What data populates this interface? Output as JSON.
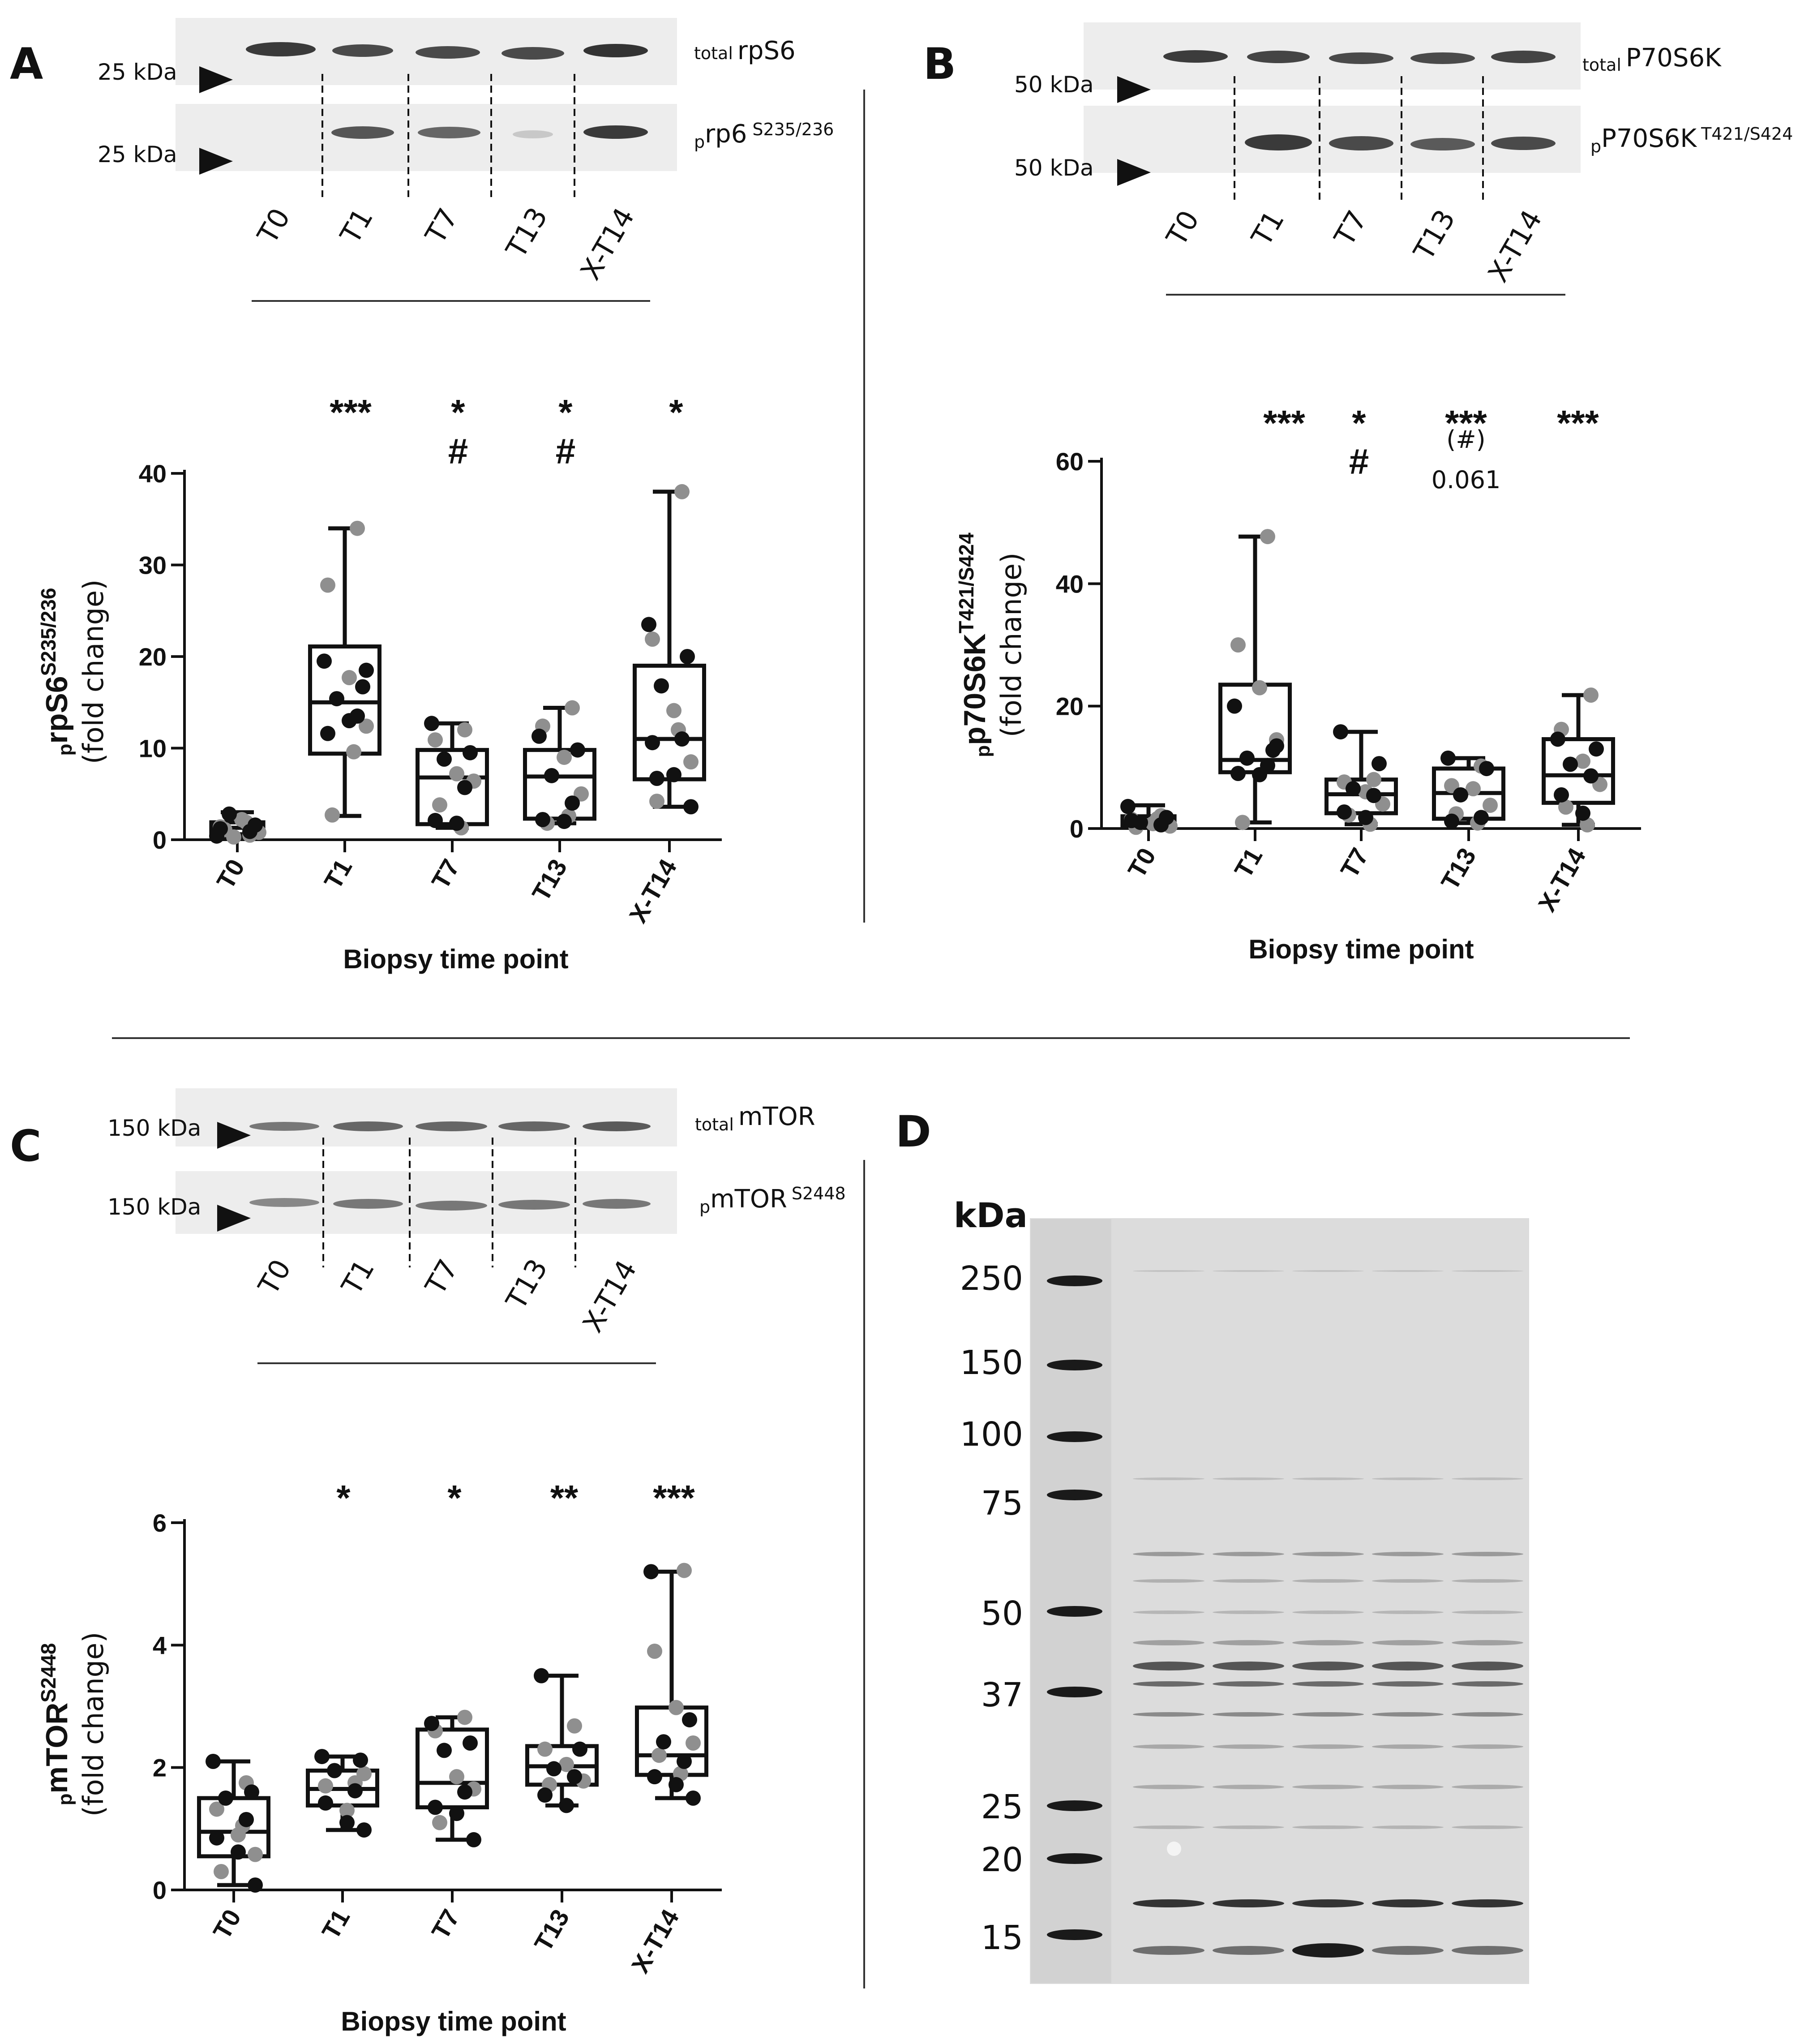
{
  "colors": {
    "ink": "#111111",
    "grey_dot": "#8f8f8f",
    "black_dot": "#111111",
    "blot_bg": "#ececec",
    "gel_bg": "#d9d9d9"
  },
  "panels": {
    "A": {
      "letter": "A",
      "blot": {
        "rows": [
          {
            "kda": "25 kDa",
            "prefix": "total",
            "name": "rpS6",
            "sup": ""
          },
          {
            "kda": "25 kDa",
            "prefix": "p",
            "name": "rp6",
            "sup": "S235/236"
          }
        ],
        "lanes": [
          "T0",
          "T1",
          "T7",
          "T13",
          "X-T14"
        ]
      },
      "significance": [
        {
          "top": "***",
          "bottom": ""
        },
        {
          "top": "*",
          "bottom": "#"
        },
        {
          "top": "*",
          "bottom": "#"
        },
        {
          "top": "*",
          "bottom": ""
        }
      ],
      "y_label": {
        "prefix": "p",
        "main": "rpS6",
        "sup": "S235/236",
        "second": "(fold change)"
      },
      "x_label": "Biopsy time point"
    },
    "B": {
      "letter": "B",
      "blot": {
        "rows": [
          {
            "kda": "50 kDa",
            "prefix": "total",
            "name": "P70S6K",
            "sup": ""
          },
          {
            "kda": "50 kDa",
            "prefix": "p",
            "name": "P70S6K",
            "sup": "T421/S424"
          }
        ],
        "lanes": [
          "T0",
          "T1",
          "T7",
          "T13",
          "X-T14"
        ]
      },
      "significance": [
        {
          "top": "***",
          "bottom": "",
          "extra": ""
        },
        {
          "top": "*",
          "bottom": "#",
          "extra": ""
        },
        {
          "top": "***",
          "bottom": "(#)",
          "extra": "0.061"
        },
        {
          "top": "***",
          "bottom": "",
          "extra": ""
        }
      ],
      "y_label": {
        "prefix": "p",
        "main": "p70S6K",
        "sup": "T421/S424",
        "second": "(fold change)"
      },
      "x_label": "Biopsy time point"
    },
    "C": {
      "letter": "C",
      "blot": {
        "rows": [
          {
            "kda": "150 kDa",
            "prefix": "total",
            "name": "mTOR",
            "sup": ""
          },
          {
            "kda": "150 kDa",
            "prefix": "p",
            "name": "mTOR",
            "sup": "S2448"
          }
        ],
        "lanes": [
          "T0",
          "T1",
          "T7",
          "T13",
          "X-T14"
        ]
      },
      "significance": [
        {
          "top": "*",
          "bottom": ""
        },
        {
          "top": "*",
          "bottom": ""
        },
        {
          "top": "**",
          "bottom": ""
        },
        {
          "top": "***",
          "bottom": ""
        }
      ],
      "y_label": {
        "prefix": "p",
        "main": "mTOR",
        "sup": "S2448",
        "second": "(fold change)"
      },
      "x_label": "Biopsy time point"
    },
    "D": {
      "letter": "D",
      "unit": "kDa",
      "markers": [
        "250",
        "150",
        "100",
        "75",
        "50",
        "37",
        "25",
        "20",
        "15"
      ]
    }
  },
  "chart_data": [
    {
      "type": "box",
      "panel": "A",
      "categories": [
        "T0",
        "T1",
        "T7",
        "T13",
        "X-T14"
      ],
      "ylim": [
        0,
        40
      ],
      "yticks": [
        0,
        10,
        20,
        30,
        40
      ],
      "boxes": [
        {
          "min": 0.3,
          "q1": 0.6,
          "median": 1.3,
          "q3": 1.9,
          "max": 3.0
        },
        {
          "min": 2.6,
          "q1": 9.4,
          "median": 15.0,
          "q3": 21.1,
          "max": 34.0
        },
        {
          "min": 1.3,
          "q1": 1.7,
          "median": 6.8,
          "q3": 9.8,
          "max": 12.7
        },
        {
          "min": 1.8,
          "q1": 2.3,
          "median": 6.9,
          "q3": 9.8,
          "max": 14.4
        },
        {
          "min": 3.6,
          "q1": 6.6,
          "median": 11.0,
          "q3": 19.0,
          "max": 38.0
        }
      ],
      "points": [
        {
          "black": [
            0.4,
            1.6,
            2.8,
            0.9,
            1.2
          ],
          "grey": [
            0.5,
            1.4,
            2.2,
            0.8,
            1.1,
            1.9,
            0.3
          ]
        },
        {
          "black": [
            19.5,
            16.7,
            15.4,
            13.5,
            11.6,
            13.0,
            18.5
          ],
          "grey": [
            34.0,
            27.8,
            17.7,
            12.4,
            2.7,
            9.6
          ]
        },
        {
          "black": [
            12.7,
            9.5,
            8.8,
            5.7,
            2.1,
            1.8
          ],
          "grey": [
            12.0,
            10.9,
            7.2,
            6.4,
            3.8,
            1.3
          ]
        },
        {
          "black": [
            11.3,
            9.8,
            7.0,
            4.0,
            2.2,
            2.0
          ],
          "grey": [
            14.4,
            12.4,
            9.0,
            5.0,
            1.8,
            2.6
          ]
        },
        {
          "black": [
            23.5,
            20.0,
            16.8,
            11.0,
            10.6,
            7.1,
            3.6,
            6.7
          ],
          "grey": [
            38.0,
            21.9,
            14.1,
            8.5,
            4.2,
            12.0
          ]
        }
      ]
    },
    {
      "type": "box",
      "panel": "B",
      "categories": [
        "T0",
        "T1",
        "T7",
        "T13",
        "X-T14"
      ],
      "ylim": [
        0,
        60
      ],
      "yticks": [
        0,
        20,
        40,
        60
      ],
      "boxes": [
        {
          "min": 0.1,
          "q1": 0.5,
          "median": 1.0,
          "q3": 2.0,
          "max": 3.8
        },
        {
          "min": 1.0,
          "q1": 9.2,
          "median": 11.2,
          "q3": 23.5,
          "max": 47.7
        },
        {
          "min": 0.7,
          "q1": 2.5,
          "median": 5.6,
          "q3": 8.0,
          "max": 15.8
        },
        {
          "min": 0.9,
          "q1": 1.6,
          "median": 5.8,
          "q3": 9.8,
          "max": 11.5
        },
        {
          "min": 0.6,
          "q1": 4.2,
          "median": 8.7,
          "q3": 14.6,
          "max": 21.8
        }
      ],
      "points": [
        {
          "black": [
            3.6,
            1.8,
            1.0,
            0.6,
            1.3
          ],
          "grey": [
            2.1,
            1.5,
            0.8,
            0.4,
            0.2,
            1.6
          ]
        },
        {
          "black": [
            20.0,
            12.8,
            11.5,
            10.3,
            9.0,
            8.8,
            13.5
          ],
          "grey": [
            47.7,
            30.0,
            23.0,
            14.5,
            1.0
          ]
        },
        {
          "black": [
            15.8,
            10.6,
            6.5,
            5.4,
            2.7,
            1.8
          ],
          "grey": [
            8.0,
            7.6,
            6.0,
            4.0,
            2.2,
            0.7
          ]
        },
        {
          "black": [
            11.5,
            9.8,
            5.5,
            1.8,
            1.2
          ],
          "grey": [
            10.2,
            7.0,
            6.5,
            3.8,
            2.4,
            0.9
          ]
        },
        {
          "black": [
            14.6,
            13.0,
            10.5,
            8.6,
            5.5,
            2.5
          ],
          "grey": [
            21.8,
            16.2,
            11.0,
            7.2,
            3.5,
            0.6
          ]
        }
      ]
    },
    {
      "type": "box",
      "panel": "C",
      "categories": [
        "T0",
        "T1",
        "T7",
        "T13",
        "X-T14"
      ],
      "ylim": [
        0,
        6
      ],
      "yticks": [
        0,
        2,
        4,
        6
      ],
      "boxes": [
        {
          "min": 0.08,
          "q1": 0.55,
          "median": 0.95,
          "q3": 1.5,
          "max": 2.1
        },
        {
          "min": 0.98,
          "q1": 1.38,
          "median": 1.65,
          "q3": 1.95,
          "max": 2.18
        },
        {
          "min": 0.82,
          "q1": 1.35,
          "median": 1.75,
          "q3": 2.62,
          "max": 2.82
        },
        {
          "min": 1.38,
          "q1": 1.72,
          "median": 2.02,
          "q3": 2.35,
          "max": 3.5
        },
        {
          "min": 1.5,
          "q1": 1.88,
          "median": 2.2,
          "q3": 2.98,
          "max": 5.2
        }
      ],
      "points": [
        {
          "black": [
            2.1,
            1.6,
            1.5,
            1.15,
            0.85,
            0.62,
            0.08
          ],
          "grey": [
            1.75,
            1.32,
            0.9,
            0.58,
            0.3,
            1.05
          ]
        },
        {
          "black": [
            2.18,
            2.12,
            1.95,
            1.62,
            1.42,
            1.1,
            0.98
          ],
          "grey": [
            1.75,
            1.7,
            1.3,
            1.9
          ]
        },
        {
          "black": [
            2.72,
            2.4,
            2.28,
            1.6,
            1.35,
            1.25,
            0.82
          ],
          "grey": [
            2.82,
            2.6,
            1.85,
            1.65,
            1.1
          ]
        },
        {
          "black": [
            3.5,
            2.3,
            1.98,
            1.85,
            1.55,
            1.38
          ],
          "grey": [
            2.68,
            2.3,
            2.05,
            1.78,
            1.72
          ]
        },
        {
          "black": [
            5.2,
            2.78,
            2.42,
            2.1,
            1.85,
            1.72,
            1.5
          ],
          "grey": [
            5.22,
            3.9,
            2.98,
            2.4,
            2.2,
            1.9
          ]
        }
      ]
    }
  ]
}
